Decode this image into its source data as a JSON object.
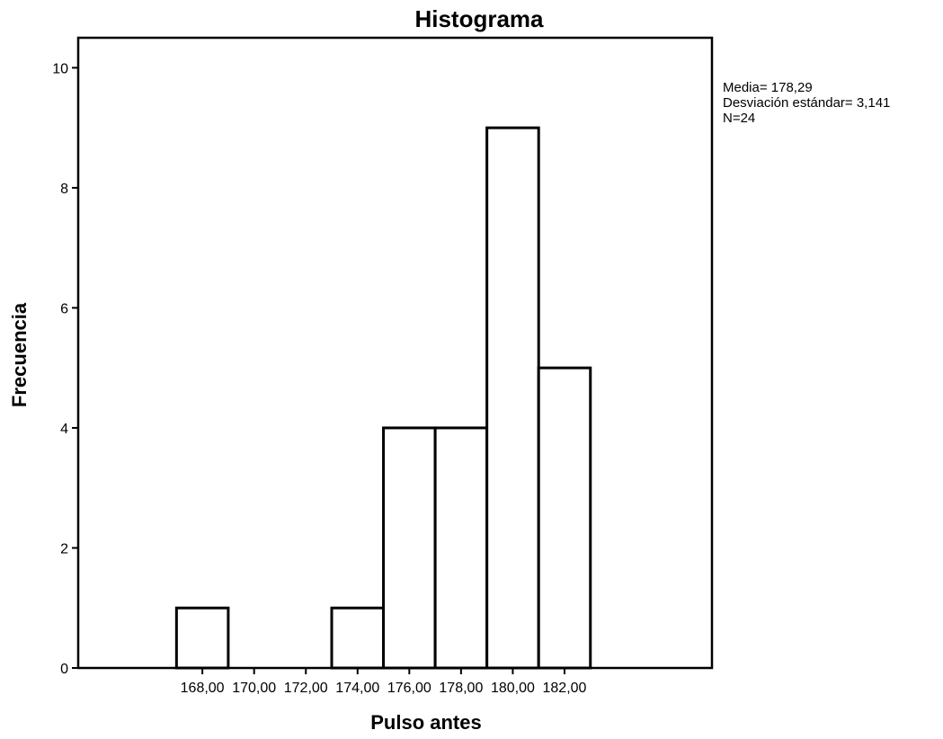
{
  "chart_data": {
    "type": "bar",
    "title": "Histograma",
    "xlabel": "Pulso antes",
    "ylabel": "Frecuencia",
    "x_tick_labels": [
      "168,00",
      "170,00",
      "172,00",
      "174,00",
      "176,00",
      "178,00",
      "180,00",
      "182,00"
    ],
    "x_ticks": [
      168,
      170,
      172,
      174,
      176,
      178,
      180,
      182
    ],
    "xlim": [
      163.2,
      187.7
    ],
    "y_ticks": [
      0,
      2,
      4,
      6,
      8,
      10
    ],
    "y_tick_labels": [
      "0",
      "2",
      "4",
      "6",
      "8",
      "10"
    ],
    "ylim": [
      0,
      10.5
    ],
    "bins": [
      {
        "start": 167,
        "end": 169,
        "value": 1
      },
      {
        "start": 169,
        "end": 171,
        "value": 0
      },
      {
        "start": 171,
        "end": 173,
        "value": 0
      },
      {
        "start": 173,
        "end": 175,
        "value": 1
      },
      {
        "start": 175,
        "end": 177,
        "value": 4
      },
      {
        "start": 177,
        "end": 179,
        "value": 4
      },
      {
        "start": 179,
        "end": 181,
        "value": 9
      },
      {
        "start": 181,
        "end": 183,
        "value": 5
      }
    ],
    "stats": [
      "Media= 178,29",
      "Desviación estándar= 3,141",
      "N=24"
    ],
    "grid": false,
    "legend": "none"
  }
}
